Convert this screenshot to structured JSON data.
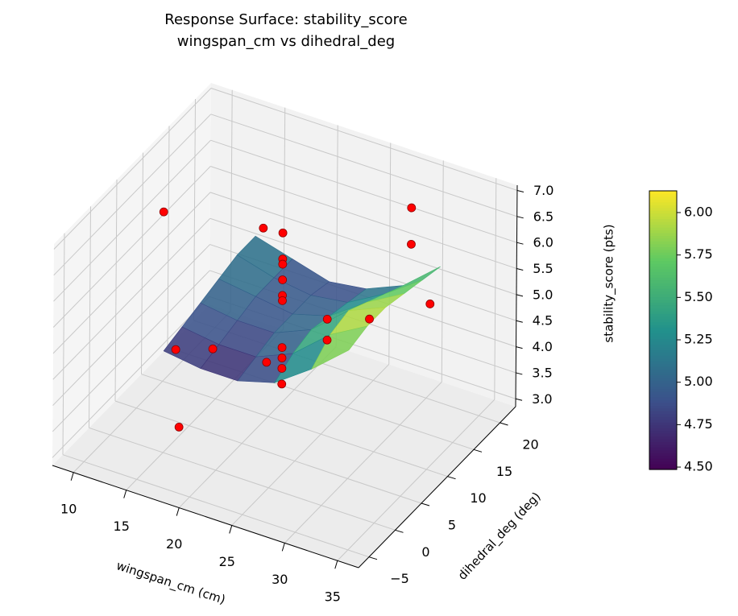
{
  "chart_data": {
    "type": "surface3d",
    "title": "Response Surface: stability_score",
    "subtitle": "wingspan_cm vs dihedral_deg",
    "xlabel": "wingspan_cm (cm)",
    "ylabel": "dihedral_deg (deg)",
    "zlabel": "stability_score (pts)",
    "xlim": [
      8,
      37
    ],
    "ylim": [
      -7,
      23
    ],
    "zlim": [
      2.85,
      7.1
    ],
    "xticks": [
      10,
      15,
      20,
      25,
      30,
      35
    ],
    "yticks": [
      {
        "value": -5,
        "label": "−5"
      },
      0,
      5,
      10,
      15,
      20
    ],
    "zticks": [
      {
        "value": 3,
        "label": "3.0"
      },
      3.5,
      {
        "value": 4,
        "label": "4.0"
      },
      4.5,
      {
        "value": 5,
        "label": "5.0"
      },
      5.5,
      {
        "value": 6,
        "label": "6.0"
      },
      6.5,
      {
        "value": 7,
        "label": "7.0"
      }
    ],
    "grid": true,
    "surface": {
      "colormap": "viridis",
      "x": [
        15,
        18.5,
        22,
        25.5,
        29,
        32.5
      ],
      "y": [
        0,
        3.5,
        7,
        10.5,
        14,
        17.5
      ],
      "z": [
        [
          4.8,
          4.7,
          4.7,
          4.9,
          5.4,
          6.0
        ],
        [
          4.9,
          4.8,
          4.8,
          5.1,
          5.7,
          6.1
        ],
        [
          5.0,
          4.9,
          4.9,
          5.2,
          5.8,
          6.1
        ],
        [
          5.1,
          5.0,
          4.9,
          5.1,
          5.6,
          6.0
        ],
        [
          5.2,
          5.0,
          4.9,
          5.0,
          5.4,
          5.9
        ],
        [
          5.2,
          5.0,
          4.8,
          4.9,
          5.2,
          5.8
        ]
      ]
    },
    "scatter": {
      "color": "#ff0000",
      "x": [
        10,
        15,
        10,
        13.5,
        16.5,
        23.5,
        27,
        27,
        30,
        28.5,
        28.5,
        34,
        22.5,
        22.5,
        22.5,
        22.5,
        22.5,
        22.5,
        22.5,
        22.5,
        22.5,
        22.5
      ],
      "y": [
        10,
        19,
        12.5,
        12.5,
        0,
        2.5,
        7,
        7,
        9,
        20,
        20,
        12.5,
        7.5,
        7.5,
        7.5,
        7.5,
        7.5,
        7.5,
        7.5,
        7.5,
        7.5,
        7.5
      ],
      "z": [
        6.1,
        5.2,
        3.2,
        3.45,
        3.44,
        4.9,
        5.5,
        5.1,
        5.5,
        6.4,
        5.7,
        5.7,
        6.8,
        6.3,
        6.2,
        5.9,
        5.6,
        5.5,
        4.6,
        4.4,
        4.2,
        3.9
      ]
    },
    "colorbar": {
      "clim": [
        4.486,
        6.128
      ],
      "ticks": [
        {
          "value": 4.5,
          "label": "4.50"
        },
        4.75,
        {
          "value": 5,
          "label": "5.00"
        },
        5.25,
        {
          "value": 5.5,
          "label": "5.50"
        },
        5.75,
        {
          "value": 6,
          "label": "6.00"
        }
      ]
    }
  }
}
